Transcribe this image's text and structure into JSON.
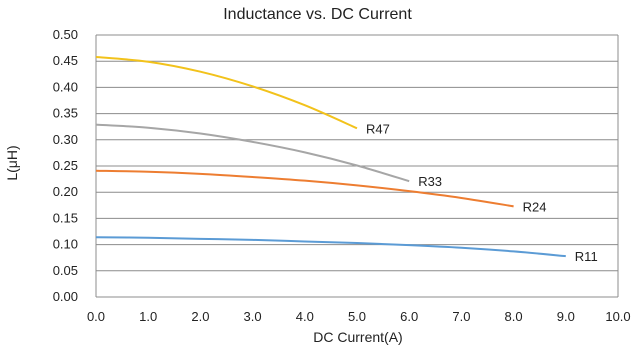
{
  "chart_data": {
    "type": "line",
    "title": "Inductance vs. DC Current",
    "xlabel": "DC Current(A)",
    "ylabel": "L(μH)",
    "xlim": [
      0,
      10
    ],
    "ylim": [
      0,
      0.5
    ],
    "x_ticks": [
      "0.0",
      "1.0",
      "2.0",
      "3.0",
      "4.0",
      "5.0",
      "6.0",
      "7.0",
      "8.0",
      "9.0",
      "10.0"
    ],
    "y_ticks": [
      "0.00",
      "0.05",
      "0.10",
      "0.15",
      "0.20",
      "0.25",
      "0.30",
      "0.35",
      "0.40",
      "0.45",
      "0.50"
    ],
    "grid": "horizontal",
    "series": [
      {
        "name": "R47",
        "color": "#f2c21b",
        "x": [
          0,
          1,
          2,
          3,
          4,
          5
        ],
        "y": [
          0.458,
          0.449,
          0.43,
          0.402,
          0.366,
          0.322
        ]
      },
      {
        "name": "R33",
        "color": "#a6a6a6",
        "x": [
          0,
          1,
          2,
          3,
          4,
          5,
          6
        ],
        "y": [
          0.329,
          0.323,
          0.312,
          0.296,
          0.276,
          0.251,
          0.221
        ]
      },
      {
        "name": "R24",
        "color": "#ed7d31",
        "x": [
          0,
          1,
          2,
          3,
          4,
          5,
          6,
          7,
          8
        ],
        "y": [
          0.241,
          0.239,
          0.235,
          0.229,
          0.222,
          0.213,
          0.202,
          0.189,
          0.173
        ]
      },
      {
        "name": "R11",
        "color": "#5b9bd5",
        "x": [
          0,
          1,
          2,
          3,
          4,
          5,
          6,
          7,
          8,
          9
        ],
        "y": [
          0.114,
          0.113,
          0.111,
          0.109,
          0.106,
          0.103,
          0.099,
          0.094,
          0.087,
          0.078
        ]
      }
    ]
  }
}
